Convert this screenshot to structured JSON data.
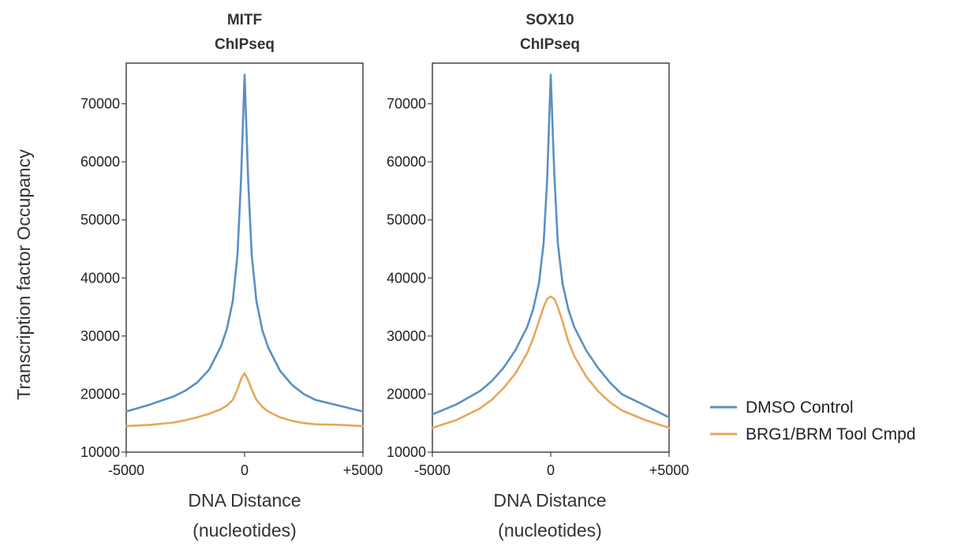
{
  "chart_data": [
    {
      "type": "line",
      "title": "MITF",
      "subtitle": "ChIPseq",
      "xlabel": "DNA Distance",
      "xlabel_unit": "(nucleotides)",
      "ylabel": "Transcription factor Occupancy",
      "xlim": [
        -5000,
        5000
      ],
      "ylim": [
        10000,
        77000
      ],
      "x_ticks": [
        -5000,
        0,
        5000
      ],
      "x_tick_labels": [
        "-5000",
        "0",
        "+5000"
      ],
      "y_ticks": [
        10000,
        20000,
        30000,
        40000,
        50000,
        60000,
        70000
      ],
      "y_tick_labels": [
        "10000",
        "20000",
        "30000",
        "40000",
        "50000",
        "60000",
        "70000"
      ],
      "grid": false,
      "x": [
        -5000,
        -4000,
        -3000,
        -2500,
        -2000,
        -1500,
        -1000,
        -750,
        -500,
        -300,
        -150,
        0,
        150,
        300,
        500,
        750,
        1000,
        1500,
        2000,
        2500,
        3000,
        4000,
        5000
      ],
      "series": [
        {
          "name": "DMSO Control",
          "color": "#5b8fc2",
          "values": [
            17000,
            18200,
            19600,
            20600,
            22000,
            24200,
            28200,
            31200,
            36000,
            44000,
            57000,
            75000,
            57000,
            44000,
            36000,
            31000,
            28000,
            24000,
            21600,
            20000,
            19000,
            18000,
            17000
          ]
        },
        {
          "name": "BRG1/BRM Tool Cmpd",
          "color": "#e8a65a",
          "values": [
            14500,
            14700,
            15100,
            15500,
            16000,
            16600,
            17400,
            18000,
            19000,
            20800,
            22600,
            23600,
            22400,
            20800,
            19000,
            17800,
            17000,
            16000,
            15400,
            15000,
            14800,
            14700,
            14500
          ]
        }
      ]
    },
    {
      "type": "line",
      "title": "SOX10",
      "subtitle": "ChIPseq",
      "xlabel": "DNA Distance",
      "xlabel_unit": "(nucleotides)",
      "ylabel": "",
      "xlim": [
        -5000,
        5000
      ],
      "ylim": [
        10000,
        77000
      ],
      "x_ticks": [
        -5000,
        0,
        5000
      ],
      "x_tick_labels": [
        "-5000",
        "0",
        "+5000"
      ],
      "y_ticks": [
        10000,
        20000,
        30000,
        40000,
        50000,
        60000,
        70000
      ],
      "y_tick_labels": [
        "10000",
        "20000",
        "30000",
        "40000",
        "50000",
        "60000",
        "70000"
      ],
      "grid": false,
      "x": [
        -5000,
        -4000,
        -3000,
        -2500,
        -2000,
        -1500,
        -1000,
        -750,
        -500,
        -300,
        -150,
        0,
        150,
        300,
        500,
        750,
        1000,
        1500,
        2000,
        2500,
        3000,
        4000,
        5000
      ],
      "series": [
        {
          "name": "DMSO Control",
          "color": "#5b8fc2",
          "values": [
            16500,
            18200,
            20500,
            22200,
            24500,
            27500,
            31500,
            34500,
            39000,
            46000,
            57000,
            75000,
            58000,
            46000,
            39000,
            34500,
            31500,
            27500,
            24500,
            22000,
            20000,
            18000,
            16000
          ]
        },
        {
          "name": "BRG1/BRM Tool Cmpd",
          "color": "#e8a65a",
          "values": [
            14200,
            15500,
            17500,
            19000,
            21000,
            23500,
            27000,
            29500,
            32500,
            35000,
            36400,
            36800,
            36400,
            35000,
            32500,
            29000,
            26500,
            23000,
            20500,
            18600,
            17200,
            15500,
            14200
          ]
        }
      ]
    }
  ],
  "legend": {
    "position": "right",
    "items": [
      {
        "label": "DMSO Control",
        "color": "#5b8fc2"
      },
      {
        "label": "BRG1/BRM Tool Cmpd",
        "color": "#e8a65a"
      }
    ]
  }
}
